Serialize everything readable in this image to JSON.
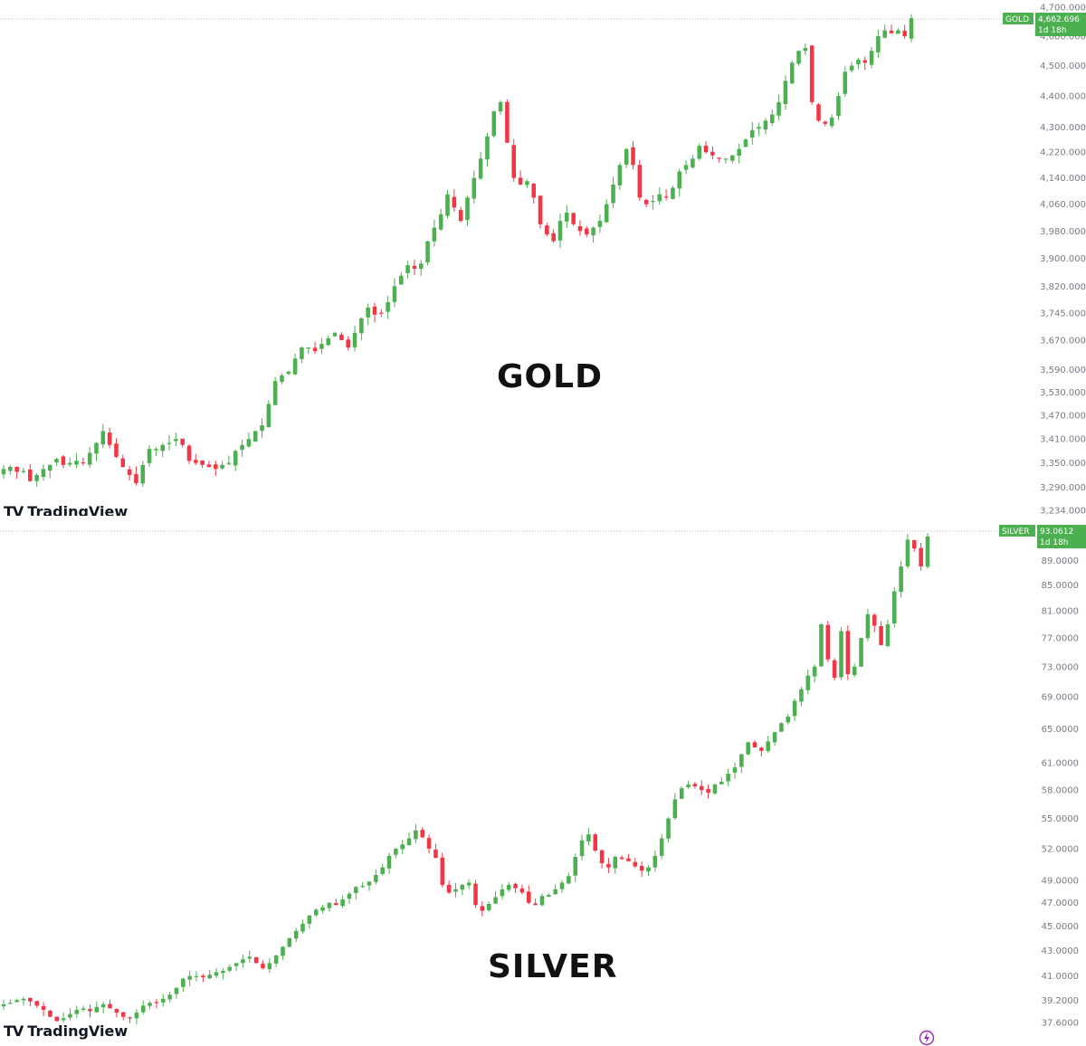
{
  "colors": {
    "up": "#4caf50",
    "down": "#f23645",
    "tag": "#4caf50",
    "axis_text": "#787b86"
  },
  "brand": {
    "name": "TradingView",
    "logo_mark": "TV"
  },
  "chart_data": [
    {
      "type": "candlestick",
      "title": "GOLD",
      "symbol": "GOLD",
      "last_price_label": "4,662.696",
      "countdown_label": "1d 18h",
      "y_scale": "log",
      "ylim": [
        3234,
        4700
      ],
      "y_ticks": [
        "4,700.000",
        "4,600.000",
        "4,500.000",
        "4,400.000",
        "4,300.000",
        "4,220.000",
        "4,140.000",
        "4,060.000",
        "3,980.000",
        "3,900.000",
        "3,820.000",
        "3,745.000",
        "3,670.000",
        "3,590.000",
        "3,530.000",
        "3,470.000",
        "3,410.000",
        "3,350.000",
        "3,290.000",
        "3,234.000"
      ],
      "y_tick_values": [
        4700,
        4600,
        4500,
        4400,
        4300,
        4220,
        4140,
        4060,
        3980,
        3900,
        3820,
        3745,
        3670,
        3590,
        3530,
        3470,
        3410,
        3350,
        3290,
        3234
      ],
      "grid": false,
      "close_path": [
        3335,
        3340,
        3328,
        3330,
        3305,
        3320,
        3335,
        3345,
        3360,
        3345,
        3350,
        3355,
        3350,
        3375,
        3400,
        3430,
        3395,
        3365,
        3340,
        3320,
        3300,
        3345,
        3385,
        3385,
        3395,
        3400,
        3410,
        3395,
        3355,
        3350,
        3345,
        3340,
        3335,
        3345,
        3350,
        3380,
        3395,
        3410,
        3430,
        3445,
        3500,
        3560,
        3575,
        3585,
        3620,
        3650,
        3650,
        3640,
        3660,
        3675,
        3690,
        3670,
        3650,
        3690,
        3730,
        3760,
        3740,
        3745,
        3775,
        3820,
        3850,
        3880,
        3870,
        3885,
        3950,
        3990,
        4030,
        4090,
        4050,
        4010,
        4080,
        4140,
        4200,
        4270,
        4350,
        4380,
        4250,
        4140,
        4120,
        4130,
        4080,
        4000,
        3970,
        3950,
        4010,
        4035,
        4000,
        3980,
        3970,
        3990,
        4010,
        4060,
        4120,
        4180,
        4230,
        4180,
        4080,
        4060,
        4070,
        4090,
        4080,
        4110,
        4160,
        4180,
        4200,
        4240,
        4220,
        4210,
        4200,
        4200,
        4210,
        4230,
        4260,
        4290,
        4300,
        4320,
        4340,
        4380,
        4450,
        4510,
        4550,
        4560,
        4380,
        4320,
        4310,
        4330,
        4400,
        4480,
        4500,
        4520,
        4510,
        4550,
        4600,
        4620,
        4610,
        4620,
        4600,
        4662
      ]
    },
    {
      "type": "candlestick",
      "title": "SILVER",
      "symbol": "SILVER",
      "last_price_label": "93.0612",
      "countdown_label": "1d 18h",
      "y_scale": "log",
      "ylim": [
        37.6,
        93.2
      ],
      "y_ticks": [
        "89.0000",
        "85.0000",
        "81.0000",
        "77.0000",
        "73.0000",
        "69.0000",
        "65.0000",
        "61.0000",
        "58.0000",
        "55.0000",
        "52.0000",
        "49.0000",
        "47.0000",
        "45.0000",
        "43.0000",
        "41.0000",
        "39.2000",
        "37.6000"
      ],
      "y_tick_values": [
        89,
        85,
        81,
        77,
        73,
        69,
        65,
        61,
        58,
        55,
        52,
        49,
        47,
        45,
        43,
        41,
        39.2,
        37.6
      ],
      "grid": false,
      "close_path": [
        38.9,
        39.0,
        39.2,
        39.3,
        39.1,
        38.8,
        38.5,
        38.0,
        37.7,
        37.9,
        38.2,
        38.5,
        38.6,
        38.4,
        38.7,
        38.9,
        38.6,
        38.3,
        38.0,
        37.9,
        38.3,
        38.8,
        39.0,
        39.0,
        39.3,
        39.6,
        40.1,
        40.8,
        41.0,
        41.0,
        40.9,
        41.1,
        41.3,
        41.4,
        41.7,
        42.0,
        42.3,
        42.5,
        42.0,
        41.6,
        42.0,
        42.6,
        43.3,
        44.0,
        44.6,
        45.2,
        45.9,
        46.4,
        46.6,
        47.0,
        46.8,
        47.3,
        47.8,
        48.4,
        48.5,
        48.9,
        49.5,
        50.2,
        51.3,
        52.0,
        52.4,
        53.0,
        53.8,
        53.1,
        52.0,
        51.1,
        48.6,
        47.9,
        48.2,
        48.6,
        48.8,
        46.8,
        46.3,
        46.9,
        47.5,
        48.2,
        48.6,
        48.3,
        47.9,
        47.0,
        46.8,
        47.6,
        47.7,
        48.2,
        48.8,
        49.4,
        51.2,
        52.8,
        53.4,
        51.8,
        50.6,
        50.2,
        51.2,
        51.0,
        50.8,
        50.3,
        49.9,
        50.2,
        51.3,
        53.0,
        55.0,
        57.0,
        58.2,
        58.6,
        58.4,
        58.0,
        57.7,
        58.6,
        58.9,
        59.8,
        60.5,
        62.0,
        63.4,
        62.8,
        62.4,
        63.5,
        64.6,
        65.7,
        66.5,
        68.5,
        70.0,
        71.8,
        73.0,
        79.0,
        74.0,
        71.5,
        78.0,
        72.0,
        73.0,
        77.0,
        80.5,
        78.8,
        76.0,
        79.0,
        84.0,
        88.0,
        92.5,
        91.0,
        88.0,
        93.06
      ]
    }
  ]
}
